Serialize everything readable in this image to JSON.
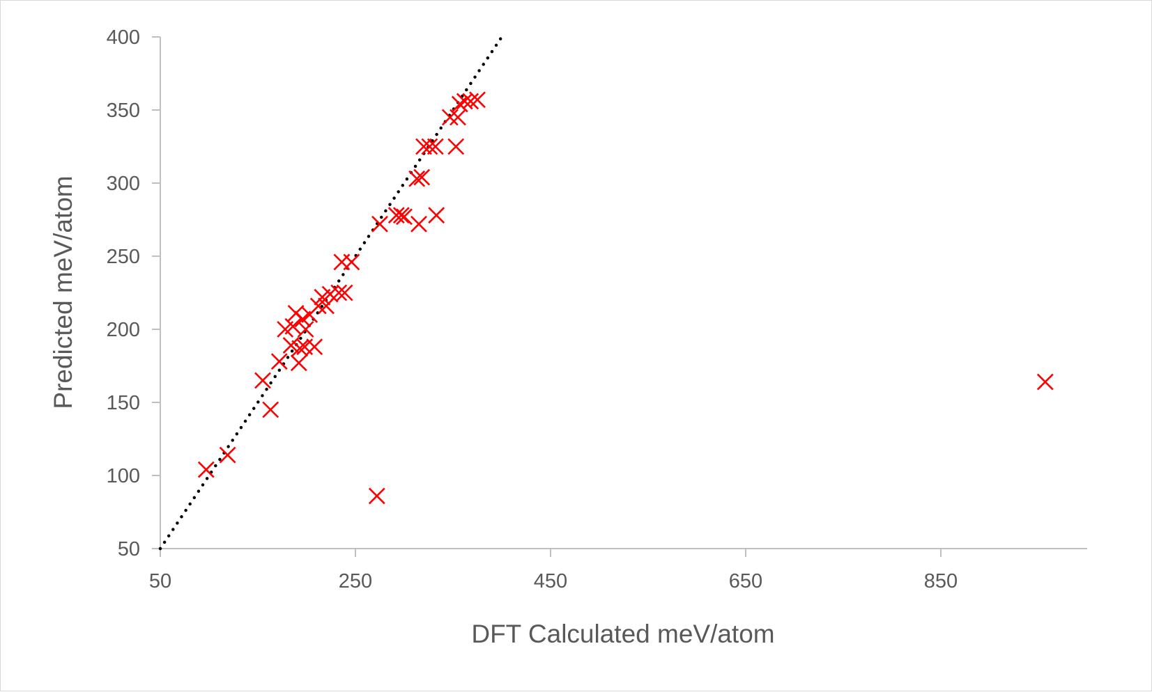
{
  "chart_data": {
    "type": "scatter",
    "title": "",
    "xlabel": "DFT Calculated meV/atom",
    "ylabel": "Predicted meV/atom",
    "xlim": [
      50,
      1000
    ],
    "ylim": [
      50,
      400
    ],
    "xticks": [
      50,
      250,
      450,
      650,
      850
    ],
    "yticks": [
      50,
      100,
      150,
      200,
      250,
      300,
      350,
      400
    ],
    "grid": false,
    "legend": "none",
    "series": [
      {
        "marker": "x",
        "color": "#ff0000",
        "points": [
          [
            97,
            104
          ],
          [
            119,
            114
          ],
          [
            155,
            165
          ],
          [
            163,
            145
          ],
          [
            172,
            178
          ],
          [
            178,
            200
          ],
          [
            184,
            189
          ],
          [
            186,
            202
          ],
          [
            189,
            211
          ],
          [
            192,
            177
          ],
          [
            193,
            187
          ],
          [
            196,
            207
          ],
          [
            198,
            188
          ],
          [
            199,
            200
          ],
          [
            203,
            210
          ],
          [
            208,
            188
          ],
          [
            212,
            216
          ],
          [
            216,
            222
          ],
          [
            220,
            216
          ],
          [
            224,
            224
          ],
          [
            233,
            225
          ],
          [
            236,
            246
          ],
          [
            239,
            225
          ],
          [
            246,
            246
          ],
          [
            275,
            272
          ],
          [
            272,
            86
          ],
          [
            292,
            278
          ],
          [
            297,
            278
          ],
          [
            300,
            277
          ],
          [
            313,
            303
          ],
          [
            318,
            304
          ],
          [
            315,
            272
          ],
          [
            320,
            325
          ],
          [
            326,
            325
          ],
          [
            332,
            325
          ],
          [
            333,
            278
          ],
          [
            347,
            345
          ],
          [
            353,
            325
          ],
          [
            355,
            345
          ],
          [
            357,
            354
          ],
          [
            362,
            356
          ],
          [
            368,
            356
          ],
          [
            375,
            357
          ],
          [
            957,
            164
          ]
        ]
      },
      {
        "type": "line",
        "style": "dotted",
        "color": "#000000",
        "x": [
          50,
          400
        ],
        "y": [
          50,
          400
        ]
      }
    ]
  }
}
